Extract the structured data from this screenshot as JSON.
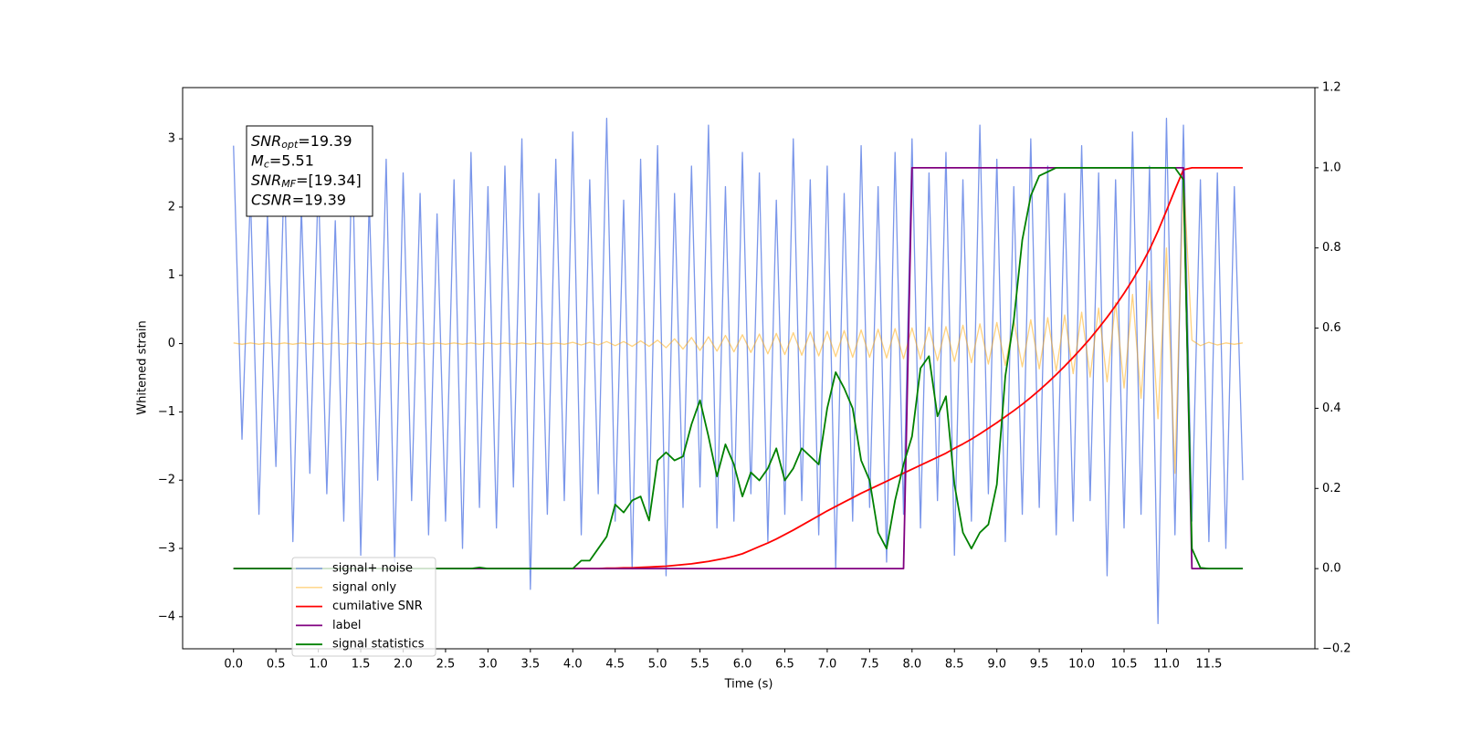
{
  "chart_data": {
    "type": "line",
    "xlabel": "Time (s)",
    "ylabel": "Whitened strain",
    "annotations": [
      {
        "symbol": "SNR",
        "subscript": "opt",
        "text": "=19.39"
      },
      {
        "symbol": "M",
        "subscript": "c",
        "text": "=5.51"
      },
      {
        "symbol": "SNR",
        "subscript": "MF",
        "text": "=[19.34]"
      },
      {
        "symbol": "CSNR",
        "text": "=19.39"
      }
    ],
    "legend": "lower left",
    "xlim": [
      -0.6,
      12.75
    ],
    "ylim": [
      -4.47,
      3.75
    ],
    "y2lim": [
      -0.2,
      1.2
    ],
    "xticks": [
      {
        "value": 0,
        "label": "0.0"
      },
      0.5,
      {
        "value": 1,
        "label": "1.0"
      },
      1.5,
      {
        "value": 2,
        "label": "2.0"
      },
      2.5,
      {
        "value": 3,
        "label": "3.0"
      },
      3.5,
      {
        "value": 4,
        "label": "4.0"
      },
      4.5,
      {
        "value": 5,
        "label": "5.0"
      },
      5.5,
      {
        "value": 6,
        "label": "6.0"
      },
      6.5,
      {
        "value": 7,
        "label": "7.0"
      },
      7.5,
      {
        "value": 8,
        "label": "8.0"
      },
      8.5,
      {
        "value": 9,
        "label": "9.0"
      },
      9.5,
      {
        "value": 10,
        "label": "10.0"
      },
      10.5,
      {
        "value": 11,
        "label": "11.0"
      },
      11.5
    ],
    "yticks": [
      {
        "value": -4,
        "label": "−4"
      },
      {
        "value": -3,
        "label": "−3"
      },
      {
        "value": -2,
        "label": "−2"
      },
      {
        "value": -1,
        "label": "−1"
      },
      0,
      1,
      2,
      3
    ],
    "y2ticks": [
      {
        "value": -0.2,
        "label": "−0.2"
      },
      {
        "value": 0,
        "label": "0.0"
      },
      0.2,
      0.4,
      0.6,
      0.8,
      {
        "value": 1,
        "label": "1.0"
      },
      1.2
    ],
    "x": [
      0,
      0.1,
      0.2,
      0.3,
      0.4,
      0.5,
      0.6,
      0.7,
      0.8,
      0.9,
      1,
      1.1,
      1.2,
      1.3,
      1.4,
      1.5,
      1.6,
      1.7,
      1.8,
      1.9,
      2,
      2.1,
      2.2,
      2.3,
      2.4,
      2.5,
      2.6,
      2.7,
      2.8,
      2.9,
      3,
      3.1,
      3.2,
      3.3,
      3.4,
      3.5,
      3.6,
      3.7,
      3.8,
      3.9,
      4,
      4.1,
      4.2,
      4.3,
      4.4,
      4.5,
      4.6,
      4.7,
      4.8,
      4.9,
      5,
      5.1,
      5.2,
      5.3,
      5.4,
      5.5,
      5.6,
      5.7,
      5.8,
      5.9,
      6,
      6.1,
      6.2,
      6.3,
      6.4,
      6.5,
      6.6,
      6.7,
      6.8,
      6.9,
      7,
      7.1,
      7.2,
      7.3,
      7.4,
      7.5,
      7.6,
      7.7,
      7.8,
      7.9,
      8,
      8.1,
      8.2,
      8.3,
      8.4,
      8.5,
      8.6,
      8.7,
      8.8,
      8.9,
      9,
      9.1,
      9.2,
      9.3,
      9.4,
      9.5,
      9.6,
      9.7,
      9.8,
      9.9,
      10,
      10.1,
      10.2,
      10.3,
      10.4,
      10.5,
      10.6,
      10.7,
      10.8,
      10.9,
      11,
      11.1,
      11.2,
      11.3,
      11.4,
      11.5,
      11.6,
      11.7,
      11.8,
      11.9
    ],
    "series": [
      {
        "name": "signal+ noise",
        "color": "#4169e1",
        "values": [
          2.9,
          -1.4,
          2.2,
          -2.5,
          1.9,
          -1.8,
          2.6,
          -2.9,
          2.0,
          -1.9,
          2.4,
          -2.2,
          1.8,
          -2.6,
          2.9,
          -3.1,
          2.1,
          -2.0,
          2.7,
          -3.2,
          2.5,
          -2.3,
          2.2,
          -2.8,
          1.9,
          -2.6,
          2.4,
          -3.0,
          2.8,
          -2.4,
          2.3,
          -2.7,
          2.6,
          -2.1,
          3.0,
          -3.6,
          2.2,
          -2.5,
          2.7,
          -2.3,
          3.1,
          -2.8,
          2.4,
          -2.2,
          3.3,
          -2.6,
          2.1,
          -3.3,
          2.7,
          -2.5,
          2.9,
          -3.4,
          2.2,
          -2.4,
          2.6,
          -2.1,
          3.2,
          -2.7,
          2.3,
          -2.6,
          2.8,
          -2.2,
          2.5,
          -2.9,
          2.1,
          -2.5,
          3.0,
          -2.3,
          2.4,
          -2.8,
          2.6,
          -3.3,
          2.2,
          -2.6,
          2.9,
          -2.4,
          2.3,
          -3.2,
          2.8,
          -2.5,
          3.0,
          -2.7,
          2.5,
          -2.3,
          2.8,
          -3.1,
          2.4,
          -2.6,
          3.2,
          -2.2,
          2.7,
          -2.9,
          2.3,
          -2.5,
          3.0,
          -2.4,
          2.6,
          -2.8,
          2.2,
          -2.6,
          2.9,
          -2.3,
          2.5,
          -3.4,
          2.4,
          -2.7,
          3.1,
          -2.5,
          2.6,
          -4.1,
          3.3,
          -2.8,
          3.2,
          -2.6,
          2.4,
          -2.9,
          2.5,
          -3.0,
          2.3,
          -2.0
        ]
      },
      {
        "name": "signal only",
        "color": "#ffa500",
        "values": [
          0.01,
          -0.01,
          0.01,
          -0.01,
          0.01,
          -0.01,
          0.01,
          -0.01,
          0.01,
          -0.01,
          0.01,
          -0.01,
          0.01,
          -0.01,
          0.01,
          -0.01,
          0.01,
          -0.01,
          0.01,
          -0.01,
          0.01,
          -0.01,
          0.01,
          -0.01,
          0.01,
          -0.01,
          0.01,
          -0.01,
          0.01,
          -0.01,
          0.01,
          -0.01,
          0.01,
          -0.01,
          0.01,
          -0.01,
          0.01,
          -0.01,
          0.01,
          -0.01,
          0.02,
          -0.02,
          0.02,
          -0.02,
          0.03,
          -0.03,
          0.03,
          -0.04,
          0.04,
          -0.04,
          0.05,
          -0.06,
          0.07,
          -0.08,
          0.09,
          -0.1,
          0.1,
          -0.11,
          0.12,
          -0.12,
          0.13,
          -0.13,
          0.14,
          -0.15,
          0.15,
          -0.16,
          0.16,
          -0.17,
          0.17,
          -0.18,
          0.18,
          -0.19,
          0.19,
          -0.2,
          0.2,
          -0.2,
          0.21,
          -0.21,
          0.22,
          -0.22,
          0.23,
          -0.23,
          0.24,
          -0.25,
          0.25,
          -0.26,
          0.27,
          -0.28,
          0.29,
          -0.3,
          0.31,
          -0.32,
          0.33,
          -0.34,
          0.35,
          -0.37,
          0.38,
          -0.4,
          0.42,
          -0.44,
          0.46,
          -0.49,
          0.52,
          -0.56,
          0.6,
          -0.65,
          0.72,
          -0.8,
          0.92,
          -1.1,
          1.4,
          -1.9,
          2.5,
          0.05,
          -0.03,
          0.02,
          -0.02,
          0.01,
          -0.01,
          0.01
        ]
      },
      {
        "name": "cumilative SNR",
        "color": "#ff0000",
        "axis": "y2",
        "values": [
          0,
          0,
          0,
          0,
          0,
          0,
          0,
          0,
          0,
          0,
          0,
          0,
          0,
          0,
          0,
          0,
          0,
          0,
          0,
          0,
          0,
          0,
          0,
          0,
          0,
          0,
          0,
          0,
          0,
          0,
          0,
          0,
          0,
          0,
          0,
          0,
          0,
          0,
          0,
          0,
          0,
          0,
          0,
          0,
          0.001,
          0.001,
          0.002,
          0.002,
          0.003,
          0.004,
          0.005,
          0.006,
          0.008,
          0.01,
          0.012,
          0.015,
          0.018,
          0.022,
          0.026,
          0.031,
          0.037,
          0.046,
          0.055,
          0.064,
          0.074,
          0.085,
          0.096,
          0.108,
          0.12,
          0.132,
          0.144,
          0.155,
          0.166,
          0.177,
          0.188,
          0.198,
          0.208,
          0.218,
          0.228,
          0.238,
          0.248,
          0.258,
          0.268,
          0.278,
          0.288,
          0.3,
          0.311,
          0.323,
          0.336,
          0.35,
          0.364,
          0.379,
          0.394,
          0.41,
          0.427,
          0.445,
          0.464,
          0.484,
          0.505,
          0.527,
          0.55,
          0.574,
          0.6,
          0.627,
          0.656,
          0.687,
          0.72,
          0.756,
          0.796,
          0.842,
          0.893,
          0.945,
          0.995,
          1,
          1,
          1,
          1,
          1,
          1,
          1
        ]
      },
      {
        "name": "label",
        "color": "#800080",
        "axis": "y2",
        "values": [
          0,
          0,
          0,
          0,
          0,
          0,
          0,
          0,
          0,
          0,
          0,
          0,
          0,
          0,
          0,
          0,
          0,
          0,
          0,
          0,
          0,
          0,
          0,
          0,
          0,
          0,
          0,
          0,
          0,
          0,
          0,
          0,
          0,
          0,
          0,
          0,
          0,
          0,
          0,
          0,
          0,
          0,
          0,
          0,
          0,
          0,
          0,
          0,
          0,
          0,
          0,
          0,
          0,
          0,
          0,
          0,
          0,
          0,
          0,
          0,
          0,
          0,
          0,
          0,
          0,
          0,
          0,
          0,
          0,
          0,
          0,
          0,
          0,
          0,
          0,
          0,
          0,
          0,
          0,
          0,
          1,
          1,
          1,
          1,
          1,
          1,
          1,
          1,
          1,
          1,
          1,
          1,
          1,
          1,
          1,
          1,
          1,
          1,
          1,
          1,
          1,
          1,
          1,
          1,
          1,
          1,
          1,
          1,
          1,
          1,
          1,
          1,
          1,
          0,
          0,
          0,
          0,
          0,
          0,
          0
        ]
      },
      {
        "name": "signal statistics",
        "color": "#008000",
        "axis": "y2",
        "values": [
          0,
          0,
          0,
          0,
          0,
          0,
          0,
          0,
          0,
          0,
          0,
          0,
          0,
          0,
          0,
          0,
          0,
          0,
          0,
          0,
          0,
          0,
          0,
          0,
          0,
          0,
          0,
          0,
          0,
          0.003,
          0,
          0,
          0,
          0,
          0,
          0,
          0,
          0,
          0,
          0,
          0,
          0.02,
          0.02,
          0.05,
          0.08,
          0.16,
          0.14,
          0.17,
          0.18,
          0.12,
          0.27,
          0.29,
          0.27,
          0.28,
          0.36,
          0.42,
          0.33,
          0.23,
          0.31,
          0.26,
          0.18,
          0.24,
          0.22,
          0.25,
          0.3,
          0.22,
          0.25,
          0.3,
          0.28,
          0.26,
          0.4,
          0.49,
          0.45,
          0.4,
          0.27,
          0.22,
          0.09,
          0.05,
          0.17,
          0.26,
          0.33,
          0.5,
          0.53,
          0.38,
          0.43,
          0.21,
          0.09,
          0.05,
          0.09,
          0.11,
          0.21,
          0.48,
          0.62,
          0.82,
          0.93,
          0.98,
          0.99,
          1,
          1,
          1,
          1,
          1,
          1,
          1,
          1,
          1,
          1,
          1,
          1,
          1,
          1,
          1,
          0.97,
          0.05,
          0.002,
          0,
          0,
          0,
          0,
          0
        ]
      }
    ]
  }
}
